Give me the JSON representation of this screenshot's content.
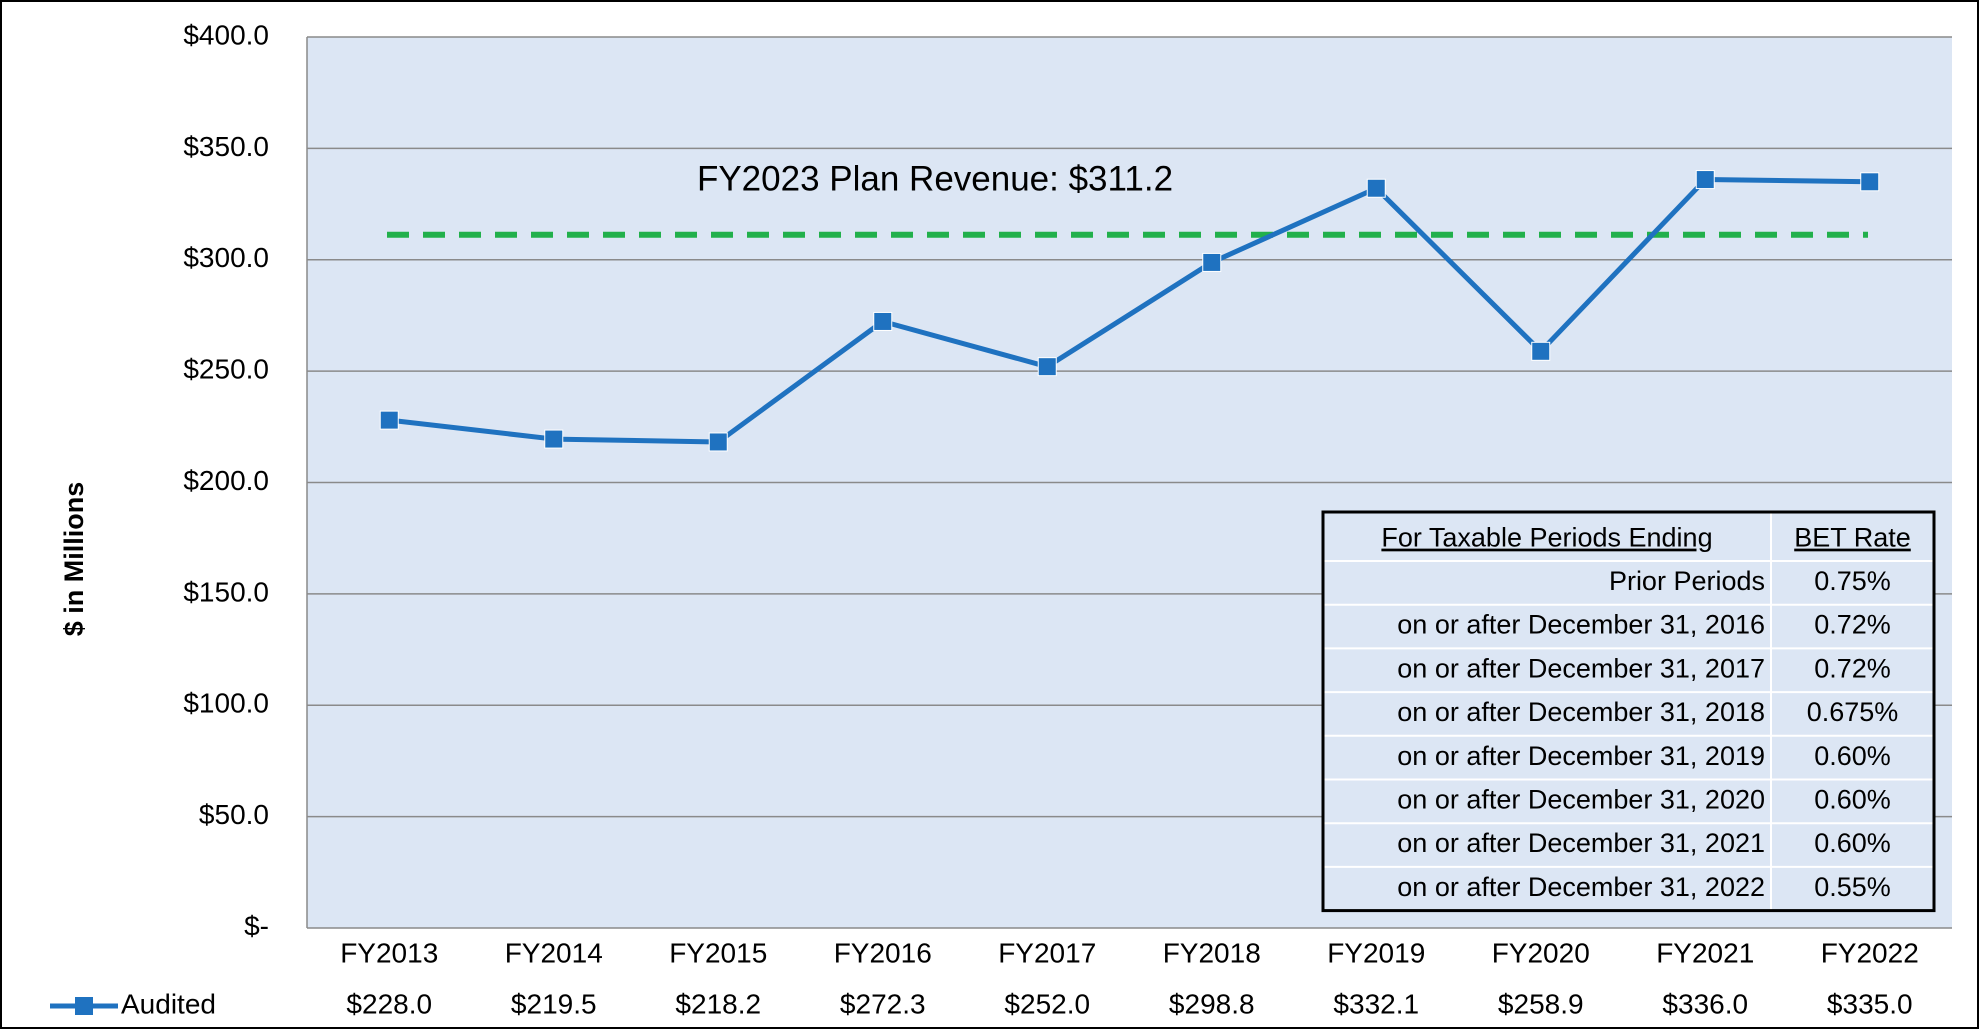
{
  "chart_data": {
    "type": "line",
    "y_label": "$ in Millions",
    "categories": [
      "FY2013",
      "FY2014",
      "FY2015",
      "FY2016",
      "FY2017",
      "FY2018",
      "FY2019",
      "FY2020",
      "FY2021",
      "FY2022"
    ],
    "series": [
      {
        "name": "Audited",
        "color": "#1f72c0",
        "values": [
          228.0,
          219.5,
          218.2,
          272.3,
          252.0,
          298.8,
          332.1,
          258.9,
          336.0,
          335.0
        ],
        "value_labels": [
          "$228.0",
          "$219.5",
          "$218.2",
          "$272.3",
          "$252.0",
          "$298.8",
          "$332.1",
          "$258.9",
          "$336.0",
          "$335.0"
        ]
      }
    ],
    "ylim": [
      0,
      400
    ],
    "yticks": [
      {
        "value": 0,
        "label": "$-"
      },
      {
        "value": 50,
        "label": "$50.0"
      },
      {
        "value": 100,
        "label": "$100.0"
      },
      {
        "value": 150,
        "label": "$150.0"
      },
      {
        "value": 200,
        "label": "$200.0"
      },
      {
        "value": 250,
        "label": "$250.0"
      },
      {
        "value": 300,
        "label": "$300.0"
      },
      {
        "value": 350,
        "label": "$350.0"
      },
      {
        "value": 400,
        "label": "$400.0"
      }
    ],
    "grid": true,
    "reference_line": {
      "value": 311.2,
      "label": "FY2023 Plan Revenue: $311.2",
      "color": "#22b04b"
    }
  },
  "rate_table": {
    "header": [
      "For Taxable Periods Ending",
      "BET Rate"
    ],
    "rows": [
      [
        "Prior Periods",
        "0.75%"
      ],
      [
        "on or after December 31, 2016",
        "0.72%"
      ],
      [
        "on or after December 31, 2017",
        "0.72%"
      ],
      [
        "on or after December 31, 2018",
        "0.675%"
      ],
      [
        "on or after December 31, 2019",
        "0.60%"
      ],
      [
        "on or after December 31, 2020",
        "0.60%"
      ],
      [
        "on or after December 31, 2021",
        "0.60%"
      ],
      [
        "on or after December 31, 2022",
        "0.55%"
      ]
    ]
  }
}
